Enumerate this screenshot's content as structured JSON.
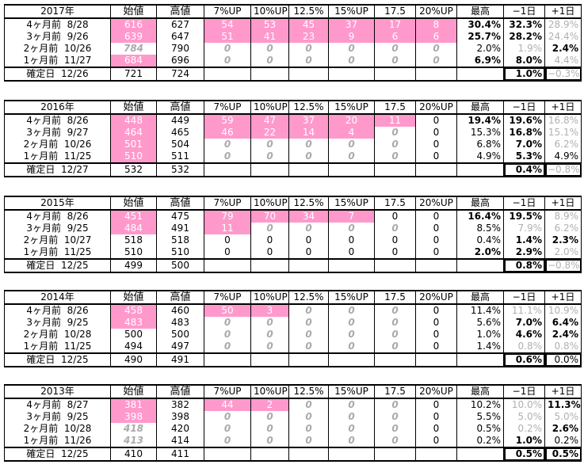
{
  "headers": [
    "始値",
    "高値",
    "7%UP",
    "10%UP",
    "12.5%",
    "15%UP",
    "17.5",
    "20%UP",
    "最高",
    "−1日",
    "+1日"
  ],
  "tables": [
    {
      "year": "2017年",
      "rows": [
        {
          "label": "4ヶ月前",
          "date": "8/28",
          "cells": [
            "616",
            "627",
            "54",
            "53",
            "45",
            "37",
            "17",
            "8",
            "30.4%",
            "32.3%",
            "28.9%"
          ]
        },
        {
          "label": "3ヶ月前",
          "date": "9/26",
          "cells": [
            "639",
            "647",
            "51",
            "41",
            "23",
            "9",
            "6",
            "6",
            "25.7%",
            "28.2%",
            "24.4%"
          ]
        },
        {
          "label": "2ヶ月前",
          "date": "10/26",
          "cells": [
            "784",
            "790",
            "0",
            "0",
            "0",
            "0",
            "0",
            "0",
            "2.0%",
            "1.9%",
            "2.4%"
          ]
        },
        {
          "label": "1ヶ月前",
          "date": "11/27",
          "cells": [
            "684",
            "696",
            "0",
            "0",
            "0",
            "0",
            "0",
            "0",
            "6.9%",
            "8.0%",
            "4.4%"
          ]
        },
        {
          "label": "確定日",
          "date": "12/26",
          "cells": [
            "721",
            "724",
            "",
            "",
            "",
            "",
            "",
            "",
            "",
            "1.0%",
            "−0.3%"
          ]
        }
      ]
    },
    {
      "year": "2016年",
      "rows": [
        {
          "label": "4ヶ月前",
          "date": "8/26",
          "cells": [
            "448",
            "449",
            "59",
            "47",
            "37",
            "20",
            "11",
            "0",
            "19.4%",
            "19.6%",
            "16.8%"
          ]
        },
        {
          "label": "3ヶ月前",
          "date": "9/27",
          "cells": [
            "464",
            "465",
            "46",
            "22",
            "14",
            "4",
            "0",
            "0",
            "15.3%",
            "16.8%",
            "15.1%"
          ]
        },
        {
          "label": "2ヶ月前",
          "date": "10/26",
          "cells": [
            "501",
            "504",
            "0",
            "0",
            "0",
            "0",
            "0",
            "0",
            "6.8%",
            "7.0%",
            "6.2%"
          ]
        },
        {
          "label": "1ヶ月前",
          "date": "11/25",
          "cells": [
            "510",
            "511",
            "0",
            "0",
            "0",
            "0",
            "0",
            "0",
            "4.9%",
            "5.3%",
            "4.9%"
          ]
        },
        {
          "label": "確定日",
          "date": "12/27",
          "cells": [
            "532",
            "532",
            "",
            "",
            "",
            "",
            "",
            "",
            "",
            "0.4%",
            "−0.8%"
          ]
        }
      ]
    },
    {
      "year": "2015年",
      "rows": [
        {
          "label": "4ヶ月前",
          "date": "8/26",
          "cells": [
            "451",
            "475",
            "79",
            "70",
            "34",
            "7",
            "0",
            "0",
            "16.4%",
            "19.5%",
            "8.9%"
          ]
        },
        {
          "label": "3ヶ月前",
          "date": "9/25",
          "cells": [
            "484",
            "491",
            "11",
            "0",
            "0",
            "0",
            "0",
            "0",
            "8.5%",
            "7.9%",
            "6.2%"
          ]
        },
        {
          "label": "2ヶ月前",
          "date": "10/27",
          "cells": [
            "518",
            "518",
            "0",
            "0",
            "0",
            "0",
            "0",
            "0",
            "0.4%",
            "1.4%",
            "2.3%"
          ]
        },
        {
          "label": "1ヶ月前",
          "date": "11/25",
          "cells": [
            "510",
            "510",
            "0",
            "0",
            "0",
            "0",
            "0",
            "0",
            "2.0%",
            "2.9%",
            "2.0%"
          ]
        },
        {
          "label": "確定日",
          "date": "12/25",
          "cells": [
            "499",
            "500",
            "",
            "",
            "",
            "",
            "",
            "",
            "",
            "0.8%",
            "−0.8%"
          ]
        }
      ]
    },
    {
      "year": "2014年",
      "rows": [
        {
          "label": "4ヶ月前",
          "date": "8/26",
          "cells": [
            "458",
            "460",
            "50",
            "3",
            "0",
            "0",
            "0",
            "0",
            "11.4%",
            "11.1%",
            "10.9%"
          ]
        },
        {
          "label": "3ヶ月前",
          "date": "9/25",
          "cells": [
            "483",
            "483",
            "0",
            "0",
            "0",
            "0",
            "0",
            "0",
            "5.6%",
            "7.0%",
            "6.4%"
          ]
        },
        {
          "label": "2ヶ月前",
          "date": "10/28",
          "cells": [
            "500",
            "500",
            "0",
            "0",
            "0",
            "0",
            "0",
            "0",
            "1.0%",
            "4.6%",
            "2.4%"
          ]
        },
        {
          "label": "1ヶ月前",
          "date": "11/25",
          "cells": [
            "494",
            "497",
            "0",
            "0",
            "0",
            "0",
            "0",
            "0",
            "1.4%",
            "0.8%",
            "0.8%"
          ]
        },
        {
          "label": "確定日",
          "date": "12/25",
          "cells": [
            "490",
            "491",
            "",
            "",
            "",
            "",
            "",
            "",
            "",
            "0.6%",
            "0.0%"
          ]
        }
      ]
    },
    {
      "year": "2013年",
      "rows": [
        {
          "label": "4ヶ月前",
          "date": "8/27",
          "cells": [
            "381",
            "382",
            "44",
            "2",
            "0",
            "0",
            "0",
            "0",
            "10.2%",
            "10.0%",
            "11.3%"
          ]
        },
        {
          "label": "3ヶ月前",
          "date": "9/25",
          "cells": [
            "398",
            "398",
            "0",
            "0",
            "0",
            "0",
            "0",
            "0",
            "5.5%",
            "5.0%",
            "5.0%"
          ]
        },
        {
          "label": "2ヶ月前",
          "date": "10/28",
          "cells": [
            "418",
            "420",
            "0",
            "0",
            "0",
            "0",
            "0",
            "0",
            "0.5%",
            "0.2%",
            "2.6%"
          ]
        },
        {
          "label": "1ヶ月前",
          "date": "11/26",
          "cells": [
            "413",
            "414",
            "0",
            "0",
            "0",
            "0",
            "0",
            "0",
            "0.2%",
            "1.0%",
            "0.2%"
          ]
        },
        {
          "label": "確定日",
          "date": "12/25",
          "cells": [
            "410",
            "411",
            "",
            "",
            "",
            "",
            "",
            "",
            "",
            "0.5%",
            "0.5%"
          ]
        }
      ]
    }
  ],
  "colors": {
    "highlight": "#ff99cc",
    "muted": "#b0b0b0"
  }
}
